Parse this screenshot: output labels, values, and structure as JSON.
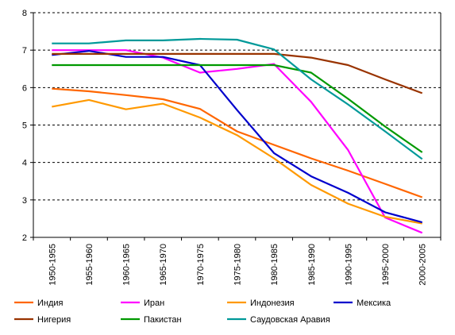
{
  "chart_data": {
    "type": "line",
    "title": "",
    "xlabel": "",
    "ylabel": "",
    "ylim": [
      2,
      8
    ],
    "yticks": [
      2,
      3,
      4,
      5,
      6,
      7,
      8
    ],
    "grid": "horizontal-dashed",
    "legend_position": "bottom",
    "categories": [
      "1950-1955",
      "1955-1960",
      "1960-1965",
      "1965-1970",
      "1970-1975",
      "1975-1980",
      "1980-1985",
      "1985-1990",
      "1990-1995",
      "1995-2000",
      "2000-2005"
    ],
    "series": [
      {
        "name": "Индия",
        "color": "#FF6600",
        "values": [
          5.97,
          5.9,
          5.8,
          5.69,
          5.43,
          4.83,
          4.47,
          4.11,
          3.78,
          3.43,
          3.07
        ]
      },
      {
        "name": "Иран",
        "color": "#FF00FF",
        "values": [
          7.0,
          7.0,
          7.0,
          6.8,
          6.4,
          6.5,
          6.63,
          5.62,
          4.33,
          2.53,
          2.12
        ]
      },
      {
        "name": "Индонезия",
        "color": "#FF9900",
        "values": [
          5.49,
          5.67,
          5.42,
          5.57,
          5.2,
          4.73,
          4.11,
          3.4,
          2.9,
          2.55,
          2.37
        ]
      },
      {
        "name": "Мексика",
        "color": "#0000CC",
        "values": [
          6.87,
          6.98,
          6.82,
          6.82,
          6.6,
          5.4,
          4.25,
          3.63,
          3.19,
          2.67,
          2.4
        ]
      },
      {
        "name": "Нигерия",
        "color": "#993300",
        "values": [
          6.9,
          6.9,
          6.9,
          6.9,
          6.9,
          6.9,
          6.9,
          6.8,
          6.6,
          6.22,
          5.85
        ]
      },
      {
        "name": "Пакистан",
        "color": "#009900",
        "values": [
          6.6,
          6.6,
          6.6,
          6.6,
          6.6,
          6.6,
          6.6,
          6.4,
          5.7,
          4.96,
          4.27
        ]
      },
      {
        "name": "Саудовская Аравия",
        "color": "#009999",
        "values": [
          7.18,
          7.18,
          7.26,
          7.26,
          7.3,
          7.28,
          7.02,
          6.22,
          5.55,
          4.83,
          4.09
        ]
      }
    ]
  }
}
